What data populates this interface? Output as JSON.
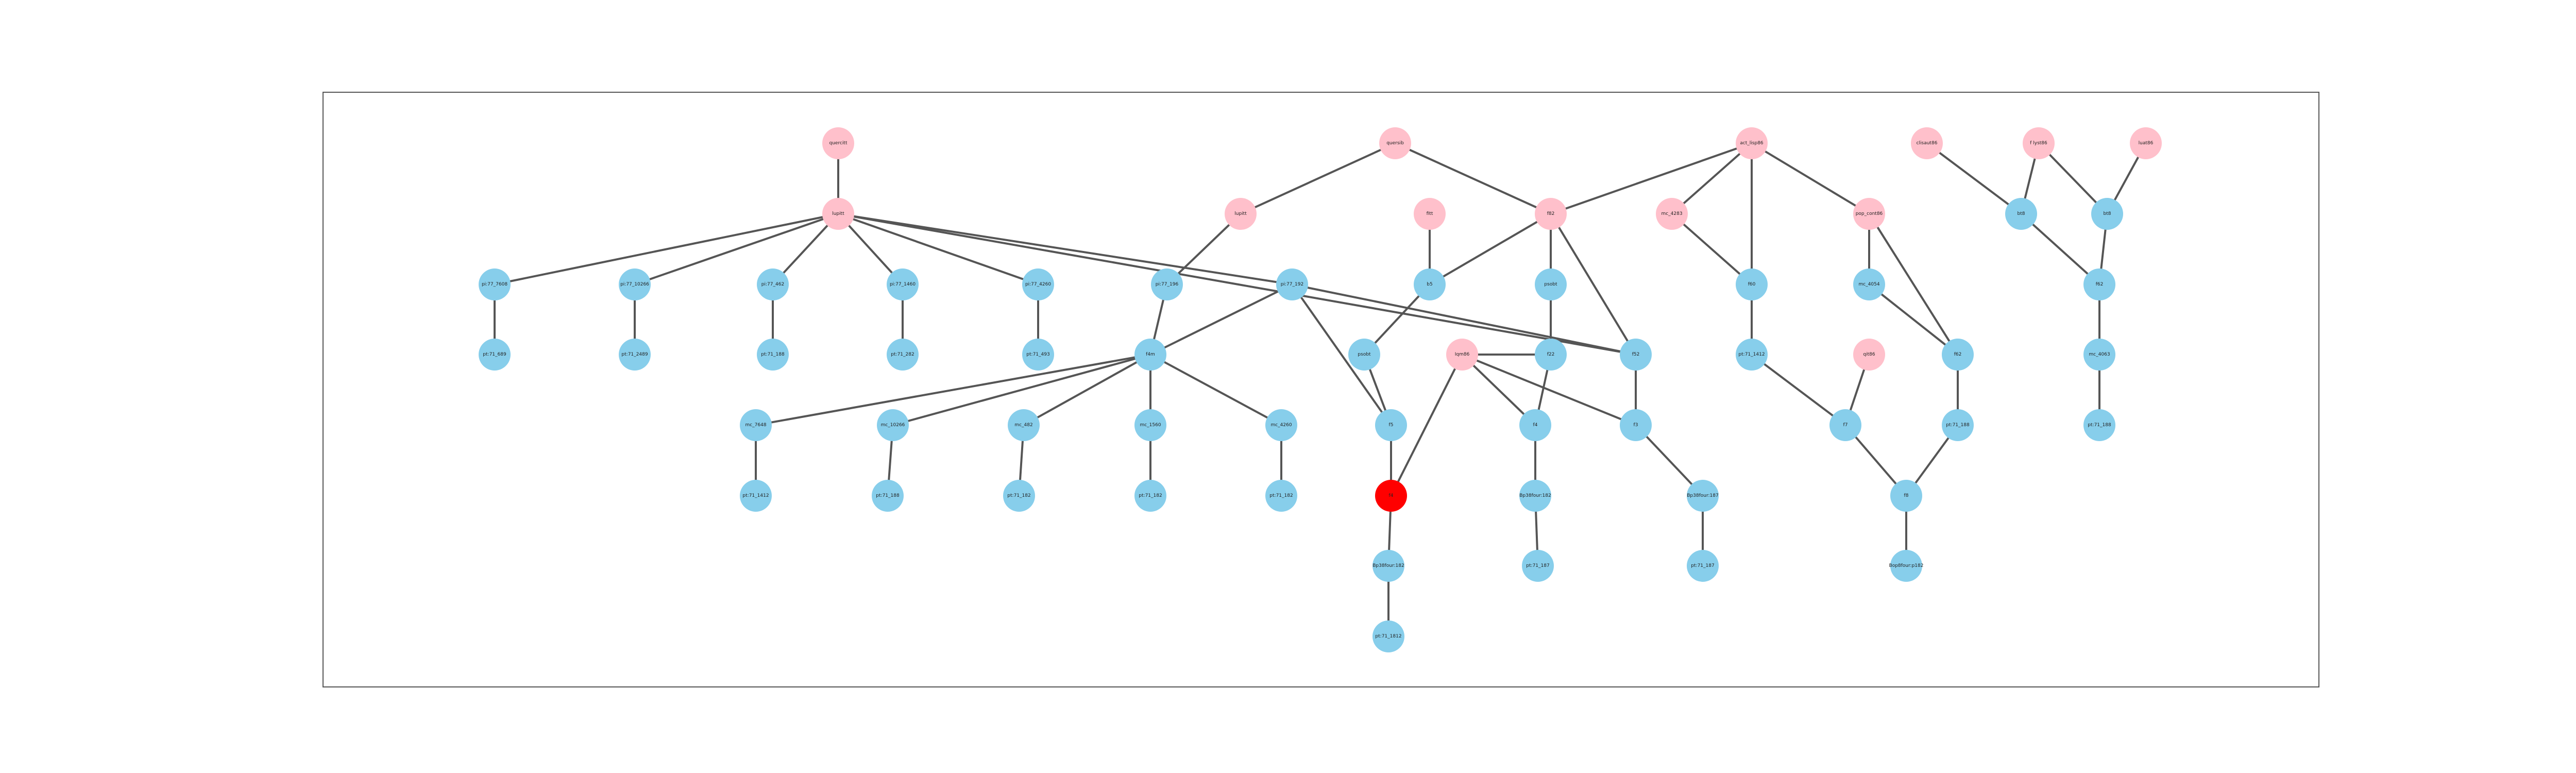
{
  "colors": {
    "background": "#ffffff",
    "frame": "#555555",
    "edge": "#555555",
    "pink": "#ffc0cb",
    "blue": "#87ceeb",
    "red": "#ff0000"
  },
  "nodes": [
    {
      "id": "n1",
      "label": "quercitt",
      "color": "pink"
    },
    {
      "id": "n2",
      "label": "lupitt",
      "color": "pink"
    },
    {
      "id": "n3",
      "label": "quersib",
      "color": "pink"
    },
    {
      "id": "n4",
      "label": "lupitt",
      "color": "pink"
    },
    {
      "id": "n5",
      "label": "fitt",
      "color": "pink"
    },
    {
      "id": "n6",
      "label": "f82",
      "color": "pink"
    },
    {
      "id": "n7",
      "label": "act_lisp86",
      "color": "pink"
    },
    {
      "id": "n8",
      "label": "mc_4283",
      "color": "pink"
    },
    {
      "id": "n9",
      "label": "pop_cont86",
      "color": "pink"
    },
    {
      "id": "n10",
      "label": "clisaut86",
      "color": "pink"
    },
    {
      "id": "n11",
      "label": "f lyst86",
      "color": "pink"
    },
    {
      "id": "n12",
      "label": "luat86",
      "color": "pink"
    },
    {
      "id": "n13",
      "label": "Iqm86",
      "color": "pink"
    },
    {
      "id": "n14",
      "label": "qit86",
      "color": "pink"
    },
    {
      "id": "n15",
      "label": "bt8",
      "color": "blue"
    },
    {
      "id": "n16",
      "label": "bt8",
      "color": "blue"
    },
    {
      "id": "n17",
      "label": "pi:77_7608",
      "color": "blue"
    },
    {
      "id": "n18",
      "label": "pi:77_10266",
      "color": "blue"
    },
    {
      "id": "n19",
      "label": "pi:77_462",
      "color": "blue"
    },
    {
      "id": "n20",
      "label": "pi:77_1460",
      "color": "blue"
    },
    {
      "id": "n21",
      "label": "pi:77_4260",
      "color": "blue"
    },
    {
      "id": "n22",
      "label": "pi:77_196",
      "color": "blue"
    },
    {
      "id": "n23",
      "label": "pi:77_192",
      "color": "blue"
    },
    {
      "id": "n24",
      "label": "b5",
      "color": "blue"
    },
    {
      "id": "n25",
      "label": "psobt",
      "color": "blue"
    },
    {
      "id": "n26",
      "label": "f60",
      "color": "blue"
    },
    {
      "id": "n27",
      "label": "mc_4054",
      "color": "blue"
    },
    {
      "id": "n28",
      "label": "f52",
      "color": "blue"
    },
    {
      "id": "n29",
      "label": "pt:71_689",
      "color": "blue"
    },
    {
      "id": "n30",
      "label": "pt:71_2489",
      "color": "blue"
    },
    {
      "id": "n31",
      "label": "pt:71_188",
      "color": "blue"
    },
    {
      "id": "n32",
      "label": "pt:71_282",
      "color": "blue"
    },
    {
      "id": "n33",
      "label": "pt:71_493",
      "color": "blue"
    },
    {
      "id": "n34",
      "label": "f4m",
      "color": "blue"
    },
    {
      "id": "n35",
      "label": "psobt",
      "color": "blue"
    },
    {
      "id": "n36",
      "label": "f22",
      "color": "blue"
    },
    {
      "id": "n37",
      "label": "f62",
      "color": "blue"
    },
    {
      "id": "n38",
      "label": "pt:71_1412",
      "color": "blue"
    },
    {
      "id": "n39",
      "label": "f62",
      "color": "blue"
    },
    {
      "id": "n40",
      "label": "mc_4063",
      "color": "blue"
    },
    {
      "id": "n41",
      "label": "mc_7648",
      "color": "blue"
    },
    {
      "id": "n42",
      "label": "mc_10266",
      "color": "blue"
    },
    {
      "id": "n43",
      "label": "mc_482",
      "color": "blue"
    },
    {
      "id": "n44",
      "label": "mc_1560",
      "color": "blue"
    },
    {
      "id": "n45",
      "label": "mc_4260",
      "color": "blue"
    },
    {
      "id": "n46",
      "label": "f5",
      "color": "blue"
    },
    {
      "id": "n47",
      "label": "f4",
      "color": "blue"
    },
    {
      "id": "n48",
      "label": "f3",
      "color": "blue"
    },
    {
      "id": "n49",
      "label": "f7",
      "color": "blue"
    },
    {
      "id": "n50",
      "label": "pt:71_1412",
      "color": "blue"
    },
    {
      "id": "n51",
      "label": "pt:71_188",
      "color": "blue"
    },
    {
      "id": "n52",
      "label": "pt:71_182",
      "color": "blue"
    },
    {
      "id": "n53",
      "label": "pt:71_182",
      "color": "blue"
    },
    {
      "id": "n54",
      "label": "pt:71_182",
      "color": "blue"
    },
    {
      "id": "n55",
      "label": "pt:71_188",
      "color": "blue"
    },
    {
      "id": "n56",
      "label": "f4",
      "color": "red"
    },
    {
      "id": "n57",
      "label": "Bp38four:182",
      "color": "blue"
    },
    {
      "id": "n58",
      "label": "Bp38four:182",
      "color": "blue"
    },
    {
      "id": "n59",
      "label": "f8",
      "color": "blue"
    },
    {
      "id": "n60",
      "label": "Bp38four:187",
      "color": "blue"
    },
    {
      "id": "n61",
      "label": "pt:71_187",
      "color": "blue"
    },
    {
      "id": "n62",
      "label": "pt:71_187",
      "color": "blue"
    },
    {
      "id": "n63",
      "label": "Bop8four:p182",
      "color": "blue"
    },
    {
      "id": "n64",
      "label": "pt:71_1812",
      "color": "blue"
    },
    {
      "id": "n65",
      "label": "pt:71_188",
      "color": "blue"
    }
  ],
  "edges": [
    [
      "n1",
      "n2"
    ],
    [
      "n2",
      "n17"
    ],
    [
      "n2",
      "n18"
    ],
    [
      "n2",
      "n19"
    ],
    [
      "n2",
      "n20"
    ],
    [
      "n2",
      "n21"
    ],
    [
      "n2",
      "n23"
    ],
    [
      "n2",
      "n28"
    ],
    [
      "n17",
      "n29"
    ],
    [
      "n18",
      "n30"
    ],
    [
      "n19",
      "n31"
    ],
    [
      "n20",
      "n32"
    ],
    [
      "n21",
      "n33"
    ],
    [
      "n3",
      "n4"
    ],
    [
      "n3",
      "n6"
    ],
    [
      "n4",
      "n22"
    ],
    [
      "n22",
      "n34"
    ],
    [
      "n23",
      "n34"
    ],
    [
      "n23",
      "n46"
    ],
    [
      "n23",
      "n28"
    ],
    [
      "n34",
      "n41"
    ],
    [
      "n34",
      "n42"
    ],
    [
      "n34",
      "n43"
    ],
    [
      "n34",
      "n44"
    ],
    [
      "n34",
      "n45"
    ],
    [
      "n41",
      "n50"
    ],
    [
      "n42",
      "n51"
    ],
    [
      "n43",
      "n52"
    ],
    [
      "n44",
      "n53"
    ],
    [
      "n45",
      "n54"
    ],
    [
      "n5",
      "n24"
    ],
    [
      "n24",
      "n35"
    ],
    [
      "n24",
      "n6"
    ],
    [
      "n6",
      "n25"
    ],
    [
      "n6",
      "n28"
    ],
    [
      "n25",
      "n36"
    ],
    [
      "n13",
      "n36"
    ],
    [
      "n13",
      "n47"
    ],
    [
      "n13",
      "n48"
    ],
    [
      "n13",
      "n56"
    ],
    [
      "n36",
      "n47"
    ],
    [
      "n35",
      "n46"
    ],
    [
      "n46",
      "n56"
    ],
    [
      "n56",
      "n57"
    ],
    [
      "n57",
      "n64"
    ],
    [
      "n47",
      "n58"
    ],
    [
      "n58",
      "n61"
    ],
    [
      "n28",
      "n48"
    ],
    [
      "n48",
      "n60"
    ],
    [
      "n60",
      "n62"
    ],
    [
      "n7",
      "n6"
    ],
    [
      "n7",
      "n8"
    ],
    [
      "n7",
      "n26"
    ],
    [
      "n7",
      "n9"
    ],
    [
      "n8",
      "n26"
    ],
    [
      "n26",
      "n38"
    ],
    [
      "n38",
      "n49"
    ],
    [
      "n14",
      "n49"
    ],
    [
      "n49",
      "n59"
    ],
    [
      "n9",
      "n27"
    ],
    [
      "n9",
      "n37"
    ],
    [
      "n27",
      "n37"
    ],
    [
      "n37",
      "n55"
    ],
    [
      "n55",
      "n59"
    ],
    [
      "n59",
      "n63"
    ],
    [
      "n10",
      "n15"
    ],
    [
      "n11",
      "n15"
    ],
    [
      "n11",
      "n16"
    ],
    [
      "n12",
      "n16"
    ],
    [
      "n15",
      "n39"
    ],
    [
      "n16",
      "n39"
    ],
    [
      "n39",
      "n40"
    ],
    [
      "n40",
      "n65"
    ]
  ]
}
